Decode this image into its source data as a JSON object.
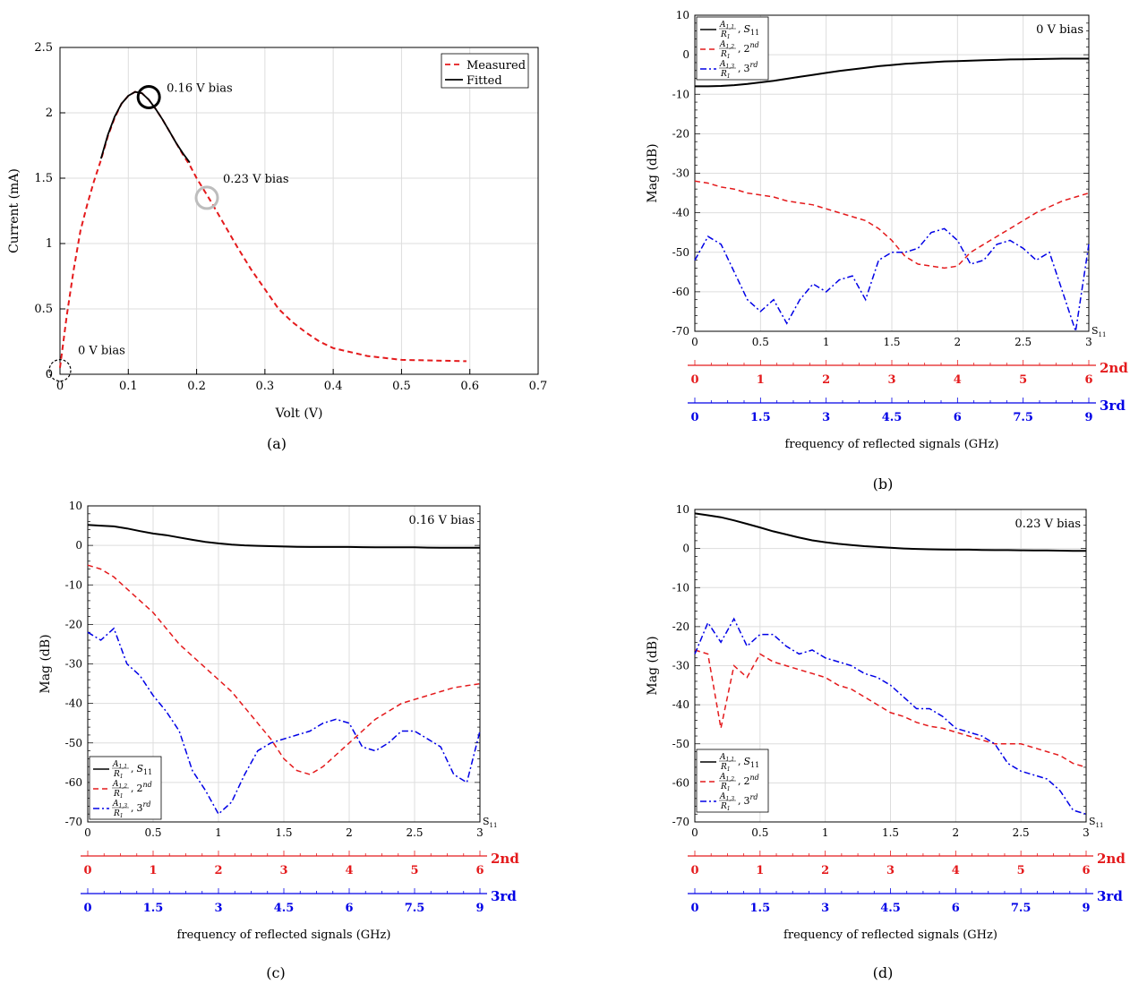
{
  "chart_data": [
    {
      "panel": "(a)",
      "type": "line",
      "xlabel": "Volt (V)",
      "ylabel": "Current (mA)",
      "xlim": [
        0,
        0.7
      ],
      "ylim": [
        0,
        2.5
      ],
      "xticks": [
        "0",
        "0.1",
        "0.2",
        "0.3",
        "0.4",
        "0.5",
        "0.6",
        "0.7"
      ],
      "yticks": [
        "0",
        "0.5",
        "1",
        "1.5",
        "2",
        "2.5"
      ],
      "grid": true,
      "legend_position": "top-right",
      "series": [
        {
          "name": "Measured",
          "style": "dashed",
          "color": "#e41a1c",
          "x": [
            0,
            0.01,
            0.02,
            0.03,
            0.04,
            0.05,
            0.06,
            0.07,
            0.08,
            0.09,
            0.1,
            0.11,
            0.12,
            0.13,
            0.14,
            0.15,
            0.16,
            0.17,
            0.18,
            0.19,
            0.2,
            0.22,
            0.24,
            0.26,
            0.28,
            0.3,
            0.32,
            0.34,
            0.36,
            0.38,
            0.4,
            0.45,
            0.5,
            0.55,
            0.595
          ],
          "y": [
            0.05,
            0.45,
            0.8,
            1.1,
            1.3,
            1.48,
            1.64,
            1.82,
            1.96,
            2.07,
            2.13,
            2.16,
            2.15,
            2.1,
            2.03,
            1.95,
            1.86,
            1.77,
            1.68,
            1.6,
            1.5,
            1.33,
            1.15,
            0.97,
            0.8,
            0.65,
            0.5,
            0.4,
            0.32,
            0.25,
            0.2,
            0.14,
            0.11,
            0.105,
            0.1
          ]
        },
        {
          "name": "Fitted",
          "style": "solid",
          "color": "#000000",
          "x": [
            0.06,
            0.07,
            0.08,
            0.09,
            0.1,
            0.11,
            0.12,
            0.13,
            0.14,
            0.15,
            0.16,
            0.17,
            0.18,
            0.19
          ],
          "y": [
            1.65,
            1.83,
            1.97,
            2.07,
            2.13,
            2.16,
            2.15,
            2.1,
            2.03,
            1.95,
            1.86,
            1.77,
            1.69,
            1.62
          ]
        }
      ],
      "annotations": [
        {
          "text": "0.16 V bias",
          "x": 0.13,
          "y": 2.12,
          "marker": "black-circle"
        },
        {
          "text": "0.23 V bias",
          "x": 0.215,
          "y": 1.35,
          "marker": "gray-circle"
        },
        {
          "text": "0 V bias",
          "x": 0.0,
          "y": 0.03,
          "marker": "dashed-circle"
        }
      ]
    },
    {
      "panel": "(b)",
      "type": "line",
      "annotation": "0 V bias",
      "xlabel": "frequency of reflected signals (GHz)",
      "ylabel": "Mag (dB)",
      "xlim": [
        0,
        3
      ],
      "ylim": [
        -70,
        10
      ],
      "x": [
        0,
        0.1,
        0.2,
        0.3,
        0.4,
        0.5,
        0.6,
        0.7,
        0.8,
        0.9,
        1.0,
        1.1,
        1.2,
        1.3,
        1.4,
        1.5,
        1.6,
        1.7,
        1.8,
        1.9,
        2.0,
        2.1,
        2.2,
        2.3,
        2.4,
        2.5,
        2.6,
        2.7,
        2.8,
        2.9,
        3.0
      ],
      "series": [
        {
          "name": "S11",
          "style": "solid",
          "color": "#000000",
          "y": [
            -8,
            -8,
            -7.9,
            -7.7,
            -7.4,
            -7,
            -6.6,
            -6.1,
            -5.6,
            -5.1,
            -4.6,
            -4.1,
            -3.7,
            -3.3,
            -2.9,
            -2.6,
            -2.3,
            -2.1,
            -1.9,
            -1.7,
            -1.6,
            -1.5,
            -1.4,
            -1.3,
            -1.2,
            -1.15,
            -1.1,
            -1.05,
            -1.0,
            -1.0,
            -1.0
          ]
        },
        {
          "name": "2nd",
          "style": "dashed",
          "color": "#e41a1c",
          "y": [
            -32,
            -32.5,
            -33.5,
            -34,
            -35,
            -35.5,
            -36,
            -37,
            -37.5,
            -38,
            -39,
            -40,
            -41,
            -42,
            -44,
            -47,
            -51,
            -53,
            -53.5,
            -54,
            -53.5,
            -50,
            -48,
            -46,
            -44,
            -42,
            -40,
            -38.5,
            -37,
            -36,
            -35
          ]
        },
        {
          "name": "3rd",
          "style": "dashdot",
          "color": "#0000e6",
          "y": [
            -52,
            -46,
            -48,
            -55,
            -62,
            -65,
            -62,
            -68,
            -62,
            -58,
            -60,
            -57,
            -56,
            -62,
            -52,
            -50,
            -50,
            -49,
            -45,
            -44,
            -47,
            -53,
            -52,
            -48,
            -47,
            -49,
            -52,
            -50,
            -60,
            -70,
            -48
          ]
        }
      ],
      "secondary_axes": [
        {
          "label": "2nd",
          "color": "#e41a1c",
          "ticks": [
            "0",
            "1",
            "2",
            "3",
            "4",
            "5",
            "6"
          ]
        },
        {
          "label": "3rd",
          "color": "#0000e6",
          "ticks": [
            "0",
            "1.5",
            "3",
            "4.5",
            "6",
            "7.5",
            "9"
          ]
        }
      ]
    },
    {
      "panel": "(c)",
      "type": "line",
      "annotation": "0.16 V bias",
      "xlabel": "frequency of reflected signals (GHz)",
      "ylabel": "Mag (dB)",
      "xlim": [
        0,
        3
      ],
      "ylim": [
        -70,
        10
      ],
      "x": [
        0,
        0.1,
        0.2,
        0.3,
        0.4,
        0.5,
        0.6,
        0.7,
        0.8,
        0.9,
        1.0,
        1.1,
        1.2,
        1.3,
        1.4,
        1.5,
        1.6,
        1.7,
        1.8,
        1.9,
        2.0,
        2.1,
        2.2,
        2.3,
        2.4,
        2.5,
        2.6,
        2.7,
        2.8,
        2.9,
        3.0
      ],
      "series": [
        {
          "name": "S11",
          "style": "solid",
          "color": "#000000",
          "y": [
            5.2,
            5,
            4.8,
            4.3,
            3.6,
            3,
            2.6,
            2,
            1.4,
            0.9,
            0.5,
            0.2,
            0,
            -0.1,
            -0.2,
            -0.3,
            -0.35,
            -0.4,
            -0.4,
            -0.4,
            -0.4,
            -0.45,
            -0.5,
            -0.5,
            -0.5,
            -0.5,
            -0.55,
            -0.6,
            -0.6,
            -0.6,
            -0.6
          ]
        },
        {
          "name": "2nd",
          "style": "dashed",
          "color": "#e41a1c",
          "y": [
            -5,
            -6,
            -8,
            -11,
            -14,
            -17,
            -21,
            -25,
            -28,
            -31,
            -34,
            -37,
            -41,
            -45,
            -49,
            -54,
            -57,
            -58,
            -56,
            -53,
            -50,
            -47,
            -44,
            -42,
            -40,
            -39,
            -38,
            -37,
            -36,
            -35.5,
            -35
          ]
        },
        {
          "name": "3rd",
          "style": "dashdot",
          "color": "#0000e6",
          "y": [
            -22,
            -24,
            -21,
            -30,
            -33,
            -38,
            -42,
            -47,
            -57,
            -62,
            -68,
            -65,
            -58,
            -52,
            -50,
            -49,
            -48,
            -47,
            -45,
            -44,
            -45,
            -51,
            -52,
            -50,
            -47,
            -47,
            -49,
            -51,
            -58,
            -60,
            -47
          ]
        }
      ],
      "legend": [
        {
          "text": "A1,1/R1, S11"
        },
        {
          "text": "A1,2/R1, 2nd"
        },
        {
          "text": "A1,3/R1, 3rd"
        }
      ],
      "secondary_axes": [
        {
          "label": "2nd",
          "color": "#e41a1c",
          "ticks": [
            "0",
            "1",
            "2",
            "3",
            "4",
            "5",
            "6"
          ]
        },
        {
          "label": "3rd",
          "color": "#0000e6",
          "ticks": [
            "0",
            "1.5",
            "3",
            "4.5",
            "6",
            "7.5",
            "9"
          ]
        }
      ]
    },
    {
      "panel": "(d)",
      "type": "line",
      "annotation": "0.23 V bias",
      "xlabel": "frequency of reflected signals (GHz)",
      "ylabel": "Mag (dB)",
      "xlim": [
        0,
        3
      ],
      "ylim": [
        -70,
        10
      ],
      "x": [
        0,
        0.1,
        0.2,
        0.3,
        0.4,
        0.5,
        0.6,
        0.7,
        0.8,
        0.9,
        1.0,
        1.1,
        1.2,
        1.3,
        1.4,
        1.5,
        1.6,
        1.7,
        1.8,
        1.9,
        2.0,
        2.1,
        2.2,
        2.3,
        2.4,
        2.5,
        2.6,
        2.7,
        2.8,
        2.9,
        3.0
      ],
      "series": [
        {
          "name": "S11",
          "style": "solid",
          "color": "#000000",
          "y": [
            9,
            8.5,
            8,
            7.2,
            6.3,
            5.4,
            4.4,
            3.6,
            2.8,
            2.1,
            1.6,
            1.2,
            0.9,
            0.6,
            0.4,
            0.2,
            0,
            -0.1,
            -0.2,
            -0.25,
            -0.3,
            -0.3,
            -0.35,
            -0.4,
            -0.4,
            -0.45,
            -0.5,
            -0.5,
            -0.55,
            -0.6,
            -0.6
          ]
        },
        {
          "name": "2nd",
          "style": "dashed",
          "color": "#e41a1c",
          "y": [
            -26,
            -27,
            -46,
            -30,
            -33,
            -27,
            -29,
            -30,
            -31,
            -32,
            -33,
            -35,
            -36,
            -38,
            -40,
            -42,
            -43,
            -44.5,
            -45.5,
            -46,
            -47,
            -48,
            -49,
            -50,
            -50,
            -50,
            -51,
            -52,
            -53,
            -55,
            -56
          ]
        },
        {
          "name": "3rd",
          "style": "dashdot",
          "color": "#0000e6",
          "y": [
            -27,
            -19,
            -24,
            -18,
            -25,
            -22,
            -22,
            -25,
            -27,
            -26,
            -28,
            -29,
            -30,
            -32,
            -33,
            -35,
            -38,
            -41,
            -41,
            -43,
            -46,
            -47,
            -48,
            -50,
            -55,
            -57,
            -58,
            -59,
            -62,
            -67,
            -68
          ]
        }
      ],
      "legend": [
        {
          "text": "A1,1/R1, S11"
        },
        {
          "text": "A1,2/R1, 2nd"
        },
        {
          "text": "A1,3/R1, 3rd"
        }
      ],
      "secondary_axes": [
        {
          "label": "2nd",
          "color": "#e41a1c",
          "ticks": [
            "0",
            "1",
            "2",
            "3",
            "4",
            "5",
            "6"
          ]
        },
        {
          "label": "3rd",
          "color": "#0000e6",
          "ticks": [
            "0",
            "1.5",
            "3",
            "4.5",
            "6",
            "7.5",
            "9"
          ]
        }
      ]
    }
  ],
  "labels": {
    "s11_axis": "S",
    "s11_sub": "11",
    "leg_a11": "A",
    "leg_r1": "R",
    "sub_11": "1,1",
    "sub_12": "1,2",
    "sub_13": "1,3",
    "sub_1": "1",
    "leg_s": "S",
    "leg_2": "2",
    "leg_3": "3",
    "nd": "nd",
    "rd": "rd",
    "comma": ","
  },
  "captions": {
    "a": "(a)",
    "b": "(b)",
    "c": "(c)",
    "d": "(d)"
  },
  "colors": {
    "measured": "#e41a1c",
    "fitted": "#000000",
    "second": "#e41a1c",
    "third": "#0000e6",
    "grid": "#dddddd"
  }
}
